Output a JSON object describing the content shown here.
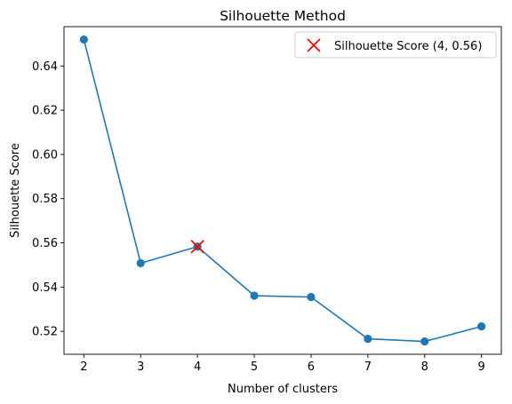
{
  "chart_data": {
    "type": "line",
    "title": "Silhouette Method",
    "xlabel": "Number of clusters",
    "ylabel": "Silhouette Score",
    "x": [
      2,
      3,
      4,
      5,
      6,
      7,
      8,
      9
    ],
    "series": [
      {
        "values": [
          0.652,
          0.5508,
          0.5583,
          0.5361,
          0.5355,
          0.5166,
          0.5154,
          0.5222
        ],
        "color": "#1f77b4",
        "marker": "circle"
      }
    ],
    "highlight": {
      "name": "Silhouette Score (4, 0.56)",
      "x": 4,
      "y": 0.5583,
      "marker": "x",
      "color": "#ff0000"
    },
    "legend": {
      "position": "top-right",
      "entries": [
        "Silhouette Score (4, 0.56)"
      ]
    },
    "xticks": [
      "2",
      "3",
      "4",
      "5",
      "6",
      "7",
      "8",
      "9"
    ],
    "yticks": [
      "0.52",
      "0.54",
      "0.56",
      "0.58",
      "0.60",
      "0.62",
      "0.64"
    ],
    "xlim": [
      1.65,
      9.35
    ],
    "ylim": [
      0.5096,
      0.6578
    ],
    "grid": false
  }
}
